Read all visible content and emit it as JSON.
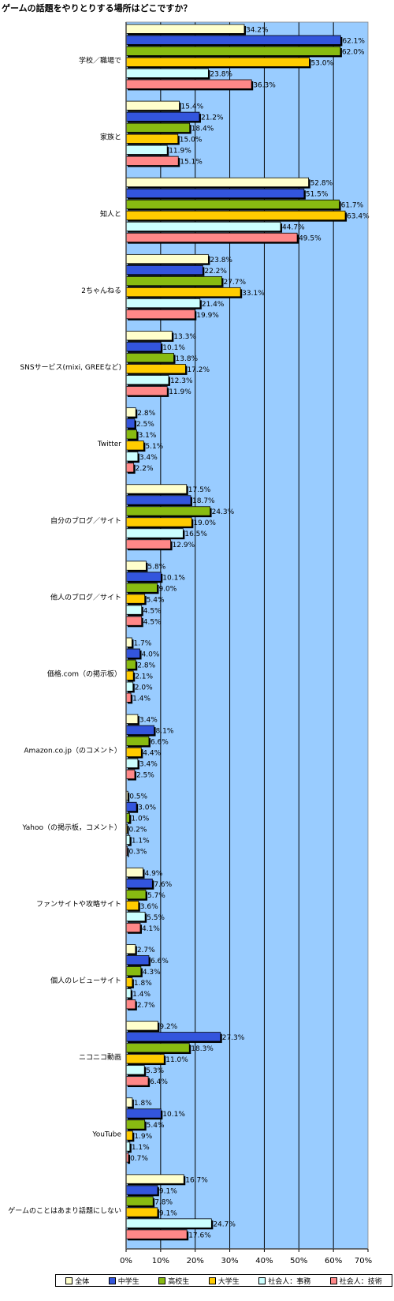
{
  "chart_data": {
    "type": "bar",
    "orientation": "horizontal",
    "title": "ゲームの話題をやりとりする場所はどこですか？",
    "categories": [
      "学校／職場で",
      "家族と",
      "知人と",
      "2ちゃんねる",
      "SNSサービス(mixi, GREEなど)",
      "Twitter",
      "自分のブログ／サイト",
      "他人のブログ／サイト",
      "価格.com（の掲示板）",
      "Amazon.co.jp（のコメント）",
      "Yahoo（の掲示板，コメント）",
      "ファンサイトや攻略サイト",
      "個人のレビューサイト",
      "ニコニコ動画",
      "YouTube",
      "ゲームのことはあまり話題にしない"
    ],
    "series": [
      {
        "name": "全体",
        "color": "#ffffcc",
        "values": [
          34.2,
          15.4,
          52.8,
          23.8,
          13.3,
          2.8,
          17.5,
          5.8,
          1.7,
          3.4,
          0.5,
          4.9,
          2.7,
          9.2,
          1.8,
          16.7
        ]
      },
      {
        "name": "中学生",
        "color": "#3355dd",
        "values": [
          62.1,
          21.2,
          51.5,
          22.2,
          10.1,
          2.5,
          18.7,
          10.1,
          4.0,
          8.1,
          3.0,
          7.6,
          6.6,
          27.3,
          10.1,
          9.1
        ]
      },
      {
        "name": "高校生",
        "color": "#88bb11",
        "values": [
          62.0,
          18.4,
          61.7,
          27.7,
          13.8,
          3.1,
          24.3,
          9.0,
          2.8,
          6.6,
          1.0,
          5.7,
          4.3,
          18.3,
          5.4,
          7.8
        ]
      },
      {
        "name": "大学生",
        "color": "#ffcc00",
        "values": [
          53.0,
          15.0,
          63.4,
          33.1,
          17.2,
          5.1,
          19.0,
          5.4,
          2.1,
          4.4,
          0.2,
          3.6,
          1.8,
          11.0,
          1.9,
          9.1
        ]
      },
      {
        "name": "社会人：事務",
        "color": "#ccffff",
        "values": [
          23.8,
          11.9,
          44.7,
          21.4,
          12.3,
          3.4,
          16.5,
          4.5,
          2.0,
          3.4,
          1.1,
          5.5,
          1.4,
          5.3,
          1.1,
          24.7
        ]
      },
      {
        "name": "社会人：技術",
        "color": "#ff8888",
        "values": [
          36.3,
          15.1,
          49.5,
          19.9,
          11.9,
          2.2,
          12.9,
          4.5,
          1.4,
          2.5,
          0.3,
          4.1,
          2.7,
          6.4,
          0.7,
          17.6
        ]
      }
    ],
    "xlim": [
      0,
      70
    ],
    "xticks": [
      "0%",
      "10%",
      "20%",
      "30%",
      "40%",
      "50%",
      "60%",
      "70%"
    ],
    "grid": true,
    "legend": "bottom",
    "plot_background": "#99ccff"
  }
}
